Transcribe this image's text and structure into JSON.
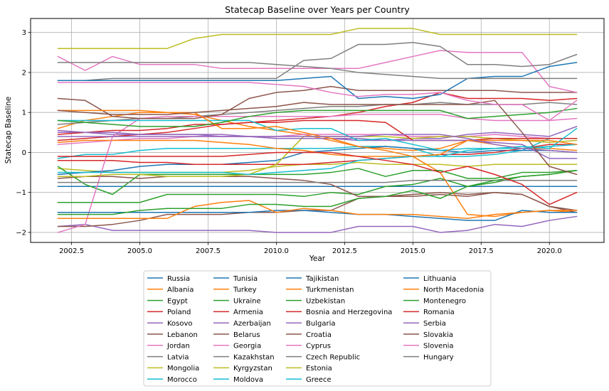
{
  "chart_data": {
    "type": "line",
    "title": "Statecap Baseline over Years per Country",
    "xlabel": "Year",
    "ylabel": "Statecap Baseline",
    "xlim": [
      2001.0,
      2022.0
    ],
    "ylim": [
      -2.25,
      3.35
    ],
    "xticks": [
      2002.5,
      2005.0,
      2007.5,
      2010.0,
      2012.5,
      2015.0,
      2017.5,
      2020.0
    ],
    "xtick_labels": [
      "2002.5",
      "2005.0",
      "2007.5",
      "2010.0",
      "2012.5",
      "2015.0",
      "2017.5",
      "2020.0"
    ],
    "yticks": [
      -2,
      -1,
      0,
      1,
      2,
      3
    ],
    "ytick_labels": [
      "−2",
      "−1",
      "0",
      "1",
      "2",
      "3"
    ],
    "grid": true,
    "legend_position": "bottom-center",
    "legend_columns": 4,
    "x": [
      2002,
      2003,
      2004,
      2005,
      2006,
      2007,
      2008,
      2009,
      2010,
      2011,
      2012,
      2013,
      2014,
      2015,
      2016,
      2017,
      2018,
      2019,
      2020,
      2021
    ],
    "series": [
      {
        "name": "Russia",
        "color": "#1f77b4",
        "values": [
          -0.85,
          -0.85,
          -0.85,
          -0.85,
          -0.85,
          -0.85,
          -0.85,
          -0.85,
          -0.85,
          -0.85,
          -0.85,
          -0.85,
          -0.85,
          -0.85,
          -0.85,
          -0.85,
          -0.85,
          -0.85,
          -0.85,
          -0.85
        ]
      },
      {
        "name": "Albania",
        "color": "#ff7f0e",
        "values": [
          0.6,
          0.8,
          0.9,
          1.0,
          1.0,
          0.95,
          0.8,
          0.65,
          0.55,
          0.45,
          0.3,
          0.15,
          0.1,
          0.05,
          0.1,
          0.3,
          0.2,
          0.1,
          0.1,
          0.05
        ]
      },
      {
        "name": "Egypt",
        "color": "#2ca02c",
        "values": [
          -1.25,
          -1.25,
          -1.25,
          -1.25,
          -1.05,
          -1.05,
          -1.05,
          -1.05,
          -1.05,
          -1.1,
          -1.0,
          -1.05,
          -0.85,
          -0.8,
          -0.65,
          -0.85,
          -0.75,
          -0.6,
          -0.55,
          -0.45
        ]
      },
      {
        "name": "Poland",
        "color": "#d62728",
        "values": [
          0.3,
          0.35,
          0.4,
          0.45,
          0.5,
          0.6,
          0.7,
          0.75,
          0.8,
          0.85,
          0.9,
          1.0,
          1.15,
          1.25,
          1.5,
          1.35,
          1.35,
          1.35,
          1.3,
          1.35
        ]
      },
      {
        "name": "Kosovo",
        "color": "#9467bd",
        "values": [
          0.5,
          0.5,
          0.45,
          0.45,
          0.45,
          0.45,
          0.4,
          0.4,
          0.35,
          0.35,
          0.35,
          0.3,
          0.3,
          0.35,
          0.35,
          0.45,
          0.5,
          0.45,
          0.4,
          0.65
        ]
      },
      {
        "name": "Lebanon",
        "color": "#8c564b",
        "values": [
          -0.65,
          -0.6,
          -0.6,
          -0.65,
          -0.6,
          -0.6,
          -0.6,
          -0.6,
          -0.65,
          -0.7,
          -0.8,
          -1.1,
          -1.1,
          -1.05,
          -1.0,
          -1.05,
          -1.0,
          -1.05,
          -1.35,
          -1.45
        ]
      },
      {
        "name": "Jordan",
        "color": "#e377c2",
        "values": [
          0.2,
          0.25,
          0.3,
          0.35,
          0.35,
          0.4,
          0.4,
          0.4,
          0.4,
          0.45,
          0.45,
          0.45,
          0.45,
          0.4,
          0.4,
          0.4,
          0.45,
          0.4,
          0.35,
          0.35
        ]
      },
      {
        "name": "Latvia",
        "color": "#7f7f7f",
        "values": [
          0.7,
          0.75,
          0.8,
          0.85,
          0.85,
          0.9,
          0.95,
          1.0,
          1.05,
          1.1,
          1.15,
          1.15,
          1.2,
          1.2,
          1.25,
          1.2,
          1.2,
          1.2,
          1.25,
          1.2
        ]
      },
      {
        "name": "Mongolia",
        "color": "#bcbd22",
        "values": [
          -0.4,
          -0.45,
          -0.5,
          -0.5,
          -0.5,
          -0.5,
          -0.5,
          -0.45,
          -0.35,
          -0.3,
          -0.3,
          -0.25,
          -0.3,
          -0.3,
          -0.3,
          -0.35,
          -0.3,
          -0.3,
          -0.3,
          -0.3
        ]
      },
      {
        "name": "Morocco",
        "color": "#17becf",
        "values": [
          -0.15,
          -0.05,
          -0.05,
          0.05,
          0.1,
          0.1,
          0.1,
          0.1,
          0.1,
          0.1,
          0.1,
          0.15,
          0.15,
          0.1,
          -0.1,
          -0.1,
          -0.05,
          0.05,
          0.35,
          0.35
        ]
      },
      {
        "name": "Tunisia",
        "color": "#1f77b4",
        "values": [
          -0.55,
          -0.5,
          -0.45,
          -0.35,
          -0.3,
          -0.3,
          -0.3,
          -0.25,
          -0.2,
          0.0,
          0.05,
          0.1,
          0.15,
          0.1,
          0.05,
          0.0,
          0.05,
          0.05,
          0.05,
          0.0
        ]
      },
      {
        "name": "Turkey",
        "color": "#ff7f0e",
        "values": [
          0.25,
          0.3,
          0.3,
          0.3,
          0.3,
          0.3,
          0.25,
          0.2,
          0.1,
          0.05,
          -0.05,
          -0.1,
          -0.1,
          -0.1,
          -0.5,
          -1.55,
          -1.6,
          -1.5,
          -1.45,
          -1.5
        ]
      },
      {
        "name": "Ukraine",
        "color": "#2ca02c",
        "values": [
          -0.35,
          -0.8,
          -1.05,
          -0.55,
          -0.55,
          -0.55,
          -0.55,
          -0.55,
          -0.55,
          -0.55,
          -0.5,
          -0.4,
          -0.6,
          -0.45,
          -0.45,
          -0.65,
          -0.65,
          -0.5,
          -0.5,
          -0.45
        ]
      },
      {
        "name": "Armenia",
        "color": "#d62728",
        "values": [
          -0.2,
          -0.2,
          -0.2,
          -0.25,
          -0.25,
          -0.3,
          -0.3,
          -0.3,
          -0.3,
          -0.3,
          -0.25,
          -0.2,
          -0.15,
          -0.1,
          -0.05,
          -0.05,
          0.0,
          0.1,
          0.2,
          0.2
        ]
      },
      {
        "name": "Azerbaijan",
        "color": "#9467bd",
        "values": [
          -1.85,
          -1.8,
          -1.95,
          -1.95,
          -1.95,
          -1.95,
          -1.95,
          -1.95,
          -2.0,
          -2.0,
          -2.0,
          -1.85,
          -1.85,
          -1.85,
          -2.0,
          -1.95,
          -1.8,
          -1.85,
          -1.7,
          -1.6
        ]
      },
      {
        "name": "Belarus",
        "color": "#8c564b",
        "values": [
          -1.85,
          -1.85,
          -1.8,
          -1.7,
          -1.55,
          -1.55,
          -1.55,
          -1.5,
          -1.5,
          -1.45,
          -1.45,
          -1.15,
          -1.1,
          -1.1,
          -1.05,
          -1.1,
          -1.0,
          -1.05,
          -1.35,
          -1.5
        ]
      },
      {
        "name": "Georgia",
        "color": "#e377c2",
        "values": [
          -2.0,
          -1.8,
          0.4,
          0.85,
          0.9,
          0.9,
          0.9,
          0.9,
          0.9,
          0.9,
          0.9,
          0.95,
          0.95,
          0.95,
          0.95,
          0.85,
          0.8,
          0.8,
          0.8,
          0.85
        ]
      },
      {
        "name": "Kazakhstan",
        "color": "#7f7f7f",
        "values": [
          -0.75,
          -0.75,
          -0.75,
          -0.75,
          -0.75,
          -0.75,
          -0.75,
          -0.75,
          -0.75,
          -0.75,
          -0.75,
          -0.75,
          -0.75,
          -0.7,
          -0.7,
          -0.7,
          -0.7,
          -0.7,
          -0.7,
          -0.7
        ]
      },
      {
        "name": "Kyrgyzstan",
        "color": "#bcbd22",
        "values": [
          -0.6,
          -0.6,
          -0.55,
          -0.55,
          -0.6,
          -0.6,
          -0.6,
          -0.55,
          -0.3,
          0.4,
          0.4,
          0.4,
          0.4,
          0.35,
          0.4,
          0.4,
          0.35,
          0.3,
          0.25,
          0.3
        ]
      },
      {
        "name": "Moldova",
        "color": "#17becf",
        "values": [
          -0.5,
          -0.5,
          -0.5,
          -0.5,
          -0.5,
          -0.5,
          -0.5,
          -0.55,
          -0.5,
          -0.45,
          -0.4,
          -0.2,
          -0.15,
          -0.1,
          -0.1,
          0.05,
          0.1,
          0.1,
          0.15,
          0.2
        ]
      },
      {
        "name": "Tajikistan",
        "color": "#1f77b4",
        "values": [
          -1.5,
          -1.5,
          -1.5,
          -1.5,
          -1.5,
          -1.5,
          -1.5,
          -1.5,
          -1.45,
          -1.45,
          -1.5,
          -1.55,
          -1.55,
          -1.6,
          -1.65,
          -1.7,
          -1.7,
          -1.45,
          -1.5,
          -1.5
        ]
      },
      {
        "name": "Turkmenistan",
        "color": "#ff7f0e",
        "values": [
          -1.65,
          -1.65,
          -1.65,
          -1.65,
          -1.65,
          -1.35,
          -1.25,
          -1.2,
          -1.5,
          -1.4,
          -1.45,
          -1.55,
          -1.55,
          -1.55,
          -1.6,
          -1.65,
          -1.55,
          -1.5,
          -1.45,
          -1.45
        ]
      },
      {
        "name": "Uzbekistan",
        "color": "#2ca02c",
        "values": [
          -1.55,
          -1.55,
          -1.55,
          -1.45,
          -1.4,
          -1.4,
          -1.4,
          -1.3,
          -1.3,
          -1.35,
          -1.35,
          -1.15,
          -1.1,
          -0.95,
          -1.15,
          -0.85,
          -0.7,
          -0.6,
          -0.55,
          -0.45
        ]
      },
      {
        "name": "Bosnia and Herzegovina",
        "color": "#d62728",
        "values": [
          0.45,
          0.5,
          0.55,
          0.55,
          0.6,
          0.7,
          0.7,
          0.75,
          0.75,
          0.8,
          0.8,
          0.8,
          0.75,
          0.3,
          0.3,
          0.3,
          0.35,
          0.35,
          0.35,
          0.35
        ]
      },
      {
        "name": "Bulgaria",
        "color": "#9467bd",
        "values": [
          0.55,
          0.5,
          0.5,
          0.45,
          0.45,
          0.45,
          0.45,
          0.4,
          0.35,
          0.35,
          0.35,
          0.35,
          0.3,
          0.3,
          0.3,
          0.3,
          0.25,
          0.2,
          -0.15,
          -0.15
        ]
      },
      {
        "name": "Croatia",
        "color": "#8c564b",
        "values": [
          1.35,
          1.3,
          0.9,
          0.85,
          0.85,
          0.85,
          0.95,
          1.35,
          1.5,
          1.55,
          1.65,
          1.55,
          1.55,
          1.55,
          1.55,
          1.55,
          1.55,
          1.5,
          1.5,
          1.5
        ]
      },
      {
        "name": "Cyprus",
        "color": "#e377c2",
        "values": [
          2.4,
          2.05,
          2.4,
          2.2,
          2.2,
          2.2,
          2.1,
          2.1,
          2.1,
          2.1,
          2.1,
          2.1,
          2.25,
          2.4,
          2.55,
          2.5,
          2.5,
          2.5,
          1.65,
          1.5
        ]
      },
      {
        "name": "Czech Republic",
        "color": "#7f7f7f",
        "values": [
          1.8,
          1.8,
          1.85,
          1.85,
          1.85,
          1.85,
          1.85,
          1.85,
          1.85,
          2.3,
          2.35,
          2.7,
          2.7,
          2.75,
          2.65,
          2.2,
          2.2,
          2.15,
          2.2,
          2.45
        ]
      },
      {
        "name": "Estonia",
        "color": "#bcbd22",
        "values": [
          2.6,
          2.6,
          2.6,
          2.6,
          2.6,
          2.85,
          2.95,
          2.95,
          2.95,
          2.95,
          2.95,
          3.1,
          3.1,
          3.1,
          2.95,
          2.95,
          2.95,
          2.95,
          2.95,
          2.95
        ]
      },
      {
        "name": "Greece",
        "color": "#17becf",
        "values": [
          0.8,
          0.8,
          0.8,
          0.8,
          0.8,
          0.8,
          0.8,
          0.8,
          0.55,
          0.6,
          0.6,
          0.3,
          0.35,
          0.2,
          0.05,
          0.1,
          0.1,
          0.15,
          0.1,
          0.6
        ]
      },
      {
        "name": "Lithuania",
        "color": "#1f77b4",
        "values": [
          1.8,
          1.8,
          1.8,
          1.8,
          1.8,
          1.8,
          1.8,
          1.8,
          1.8,
          1.85,
          1.9,
          1.35,
          1.4,
          1.35,
          1.45,
          1.85,
          1.9,
          1.9,
          2.15,
          2.25
        ]
      },
      {
        "name": "North Macedonia",
        "color": "#ff7f0e",
        "values": [
          1.05,
          1.05,
          1.05,
          1.05,
          1.0,
          1.0,
          0.6,
          0.6,
          0.65,
          0.5,
          0.35,
          0.15,
          0.05,
          -0.1,
          -0.05,
          0.3,
          0.3,
          0.3,
          0.3,
          0.2
        ]
      },
      {
        "name": "Montenegro",
        "color": "#2ca02c",
        "values": [
          0.8,
          0.75,
          0.7,
          0.65,
          0.65,
          0.65,
          0.75,
          0.9,
          1.0,
          1.05,
          1.05,
          1.05,
          1.05,
          1.05,
          1.05,
          0.85,
          0.9,
          0.95,
          1.0,
          1.1
        ]
      },
      {
        "name": "Romania",
        "color": "#d62728",
        "values": [
          -0.1,
          -0.1,
          -0.1,
          -0.1,
          -0.1,
          -0.1,
          -0.1,
          -0.05,
          0.0,
          0.0,
          0.0,
          -0.1,
          -0.2,
          -0.3,
          -0.5,
          -0.35,
          -0.55,
          -0.8,
          -1.3,
          -1.0
        ]
      },
      {
        "name": "Serbia",
        "color": "#9467bd",
        "values": [
          0.4,
          0.4,
          0.4,
          0.4,
          0.4,
          0.4,
          0.4,
          0.4,
          0.4,
          0.4,
          0.4,
          0.4,
          0.45,
          0.45,
          0.45,
          0.35,
          0.2,
          0.1,
          0.05,
          0.0
        ]
      },
      {
        "name": "Slovakia",
        "color": "#8c564b",
        "values": [
          1.05,
          1.0,
          0.95,
          0.95,
          0.95,
          1.0,
          1.05,
          1.1,
          1.15,
          1.25,
          1.2,
          1.2,
          1.2,
          1.2,
          1.2,
          1.2,
          1.3,
          0.5,
          -0.35,
          -0.55
        ]
      },
      {
        "name": "Slovenia",
        "color": "#e377c2",
        "values": [
          1.75,
          1.75,
          1.75,
          1.75,
          1.75,
          1.75,
          1.75,
          1.75,
          1.7,
          1.65,
          1.5,
          1.4,
          1.45,
          1.45,
          1.5,
          1.3,
          1.2,
          1.2,
          0.8,
          1.3
        ]
      },
      {
        "name": "Hungary",
        "color": "#7f7f7f",
        "values": [
          2.25,
          2.25,
          2.25,
          2.25,
          2.25,
          2.25,
          2.25,
          2.25,
          2.2,
          2.15,
          2.1,
          2.0,
          1.95,
          1.9,
          1.85,
          1.85,
          1.85,
          1.85,
          1.85,
          1.85
        ]
      }
    ]
  }
}
